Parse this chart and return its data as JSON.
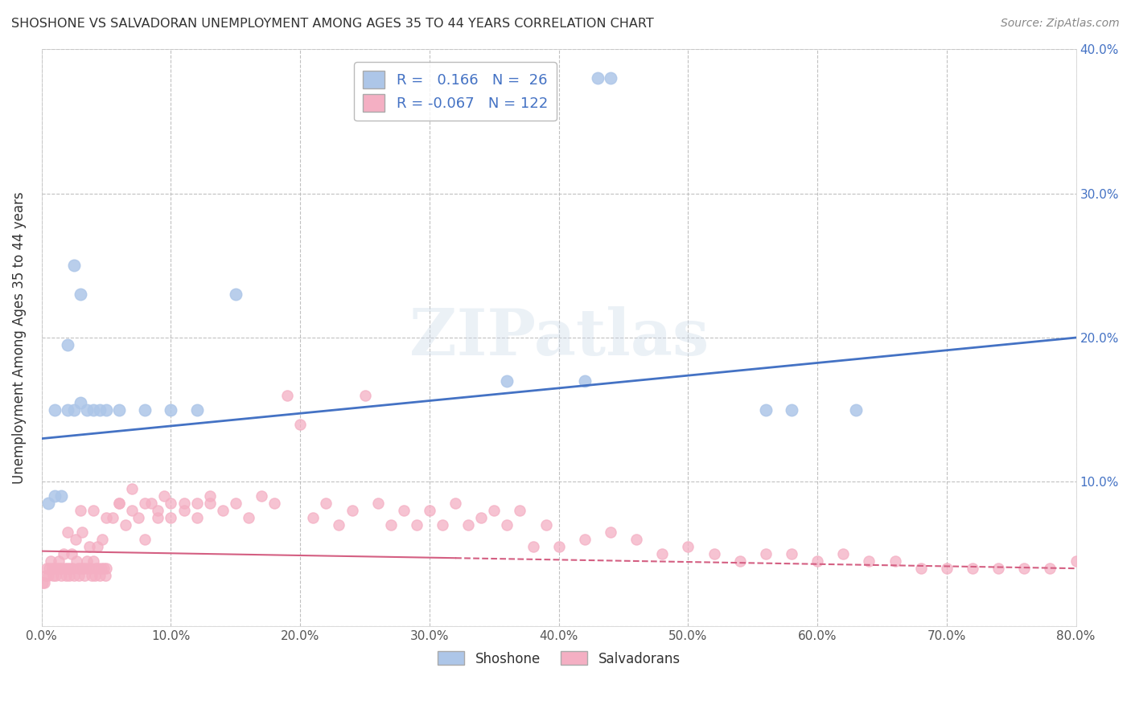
{
  "title": "SHOSHONE VS SALVADORAN UNEMPLOYMENT AMONG AGES 35 TO 44 YEARS CORRELATION CHART",
  "source": "Source: ZipAtlas.com",
  "ylabel": "Unemployment Among Ages 35 to 44 years",
  "xlim": [
    0.0,
    0.8
  ],
  "ylim": [
    0.0,
    0.4
  ],
  "xticks": [
    0.0,
    0.1,
    0.2,
    0.3,
    0.4,
    0.5,
    0.6,
    0.7,
    0.8
  ],
  "yticks": [
    0.0,
    0.1,
    0.2,
    0.3,
    0.4
  ],
  "xtick_labels": [
    "0.0%",
    "10.0%",
    "20.0%",
    "30.0%",
    "40.0%",
    "50.0%",
    "60.0%",
    "70.0%",
    "80.0%"
  ],
  "ytick_labels_right": [
    "",
    "10.0%",
    "20.0%",
    "30.0%",
    "40.0%"
  ],
  "shoshone_color": "#adc6e8",
  "salvadoran_color": "#f4afc3",
  "shoshone_line_color": "#4472c4",
  "salvadoran_line_color": "#d45f82",
  "shoshone_R": 0.166,
  "shoshone_N": 26,
  "salvadoran_R": -0.067,
  "salvadoran_N": 122,
  "legend_R_color": "#4472c4",
  "background_color": "#ffffff",
  "grid_color": "#bbbbbb",
  "shoshone_line_x0": 0.0,
  "shoshone_line_y0": 0.13,
  "shoshone_line_x1": 0.8,
  "shoshone_line_y1": 0.2,
  "salvadoran_line_x0": 0.0,
  "salvadoran_line_y0": 0.052,
  "salvadoran_line_x1": 0.8,
  "salvadoran_line_y1": 0.04,
  "shoshone_x": [
    0.005,
    0.01,
    0.015,
    0.02,
    0.025,
    0.03,
    0.035,
    0.04,
    0.045,
    0.01,
    0.02,
    0.025,
    0.03,
    0.05,
    0.06,
    0.08,
    0.1,
    0.12,
    0.15,
    0.36,
    0.42,
    0.43,
    0.44,
    0.56,
    0.58,
    0.63
  ],
  "shoshone_y": [
    0.085,
    0.09,
    0.09,
    0.195,
    0.15,
    0.155,
    0.15,
    0.15,
    0.15,
    0.15,
    0.15,
    0.25,
    0.23,
    0.15,
    0.15,
    0.15,
    0.15,
    0.15,
    0.23,
    0.17,
    0.17,
    0.38,
    0.38,
    0.15,
    0.15,
    0.15
  ],
  "salvadoran_x": [
    0.001,
    0.002,
    0.003,
    0.004,
    0.005,
    0.006,
    0.007,
    0.008,
    0.009,
    0.01,
    0.011,
    0.012,
    0.013,
    0.014,
    0.015,
    0.016,
    0.017,
    0.018,
    0.019,
    0.02,
    0.021,
    0.022,
    0.023,
    0.024,
    0.025,
    0.026,
    0.027,
    0.028,
    0.029,
    0.03,
    0.031,
    0.032,
    0.033,
    0.034,
    0.035,
    0.036,
    0.037,
    0.038,
    0.039,
    0.04,
    0.041,
    0.042,
    0.043,
    0.044,
    0.045,
    0.046,
    0.047,
    0.048,
    0.049,
    0.05,
    0.055,
    0.06,
    0.065,
    0.07,
    0.075,
    0.08,
    0.085,
    0.09,
    0.095,
    0.1,
    0.11,
    0.12,
    0.13,
    0.14,
    0.15,
    0.16,
    0.17,
    0.18,
    0.19,
    0.2,
    0.21,
    0.22,
    0.23,
    0.24,
    0.25,
    0.26,
    0.27,
    0.28,
    0.29,
    0.3,
    0.31,
    0.32,
    0.33,
    0.34,
    0.35,
    0.36,
    0.37,
    0.38,
    0.39,
    0.4,
    0.42,
    0.44,
    0.46,
    0.48,
    0.5,
    0.52,
    0.54,
    0.56,
    0.58,
    0.6,
    0.62,
    0.64,
    0.66,
    0.68,
    0.7,
    0.72,
    0.74,
    0.76,
    0.78,
    0.8,
    0.02,
    0.03,
    0.04,
    0.05,
    0.06,
    0.07,
    0.08,
    0.09,
    0.1,
    0.11,
    0.12,
    0.13
  ],
  "salvadoran_y": [
    0.03,
    0.03,
    0.035,
    0.04,
    0.035,
    0.04,
    0.045,
    0.04,
    0.035,
    0.04,
    0.035,
    0.04,
    0.045,
    0.04,
    0.035,
    0.04,
    0.05,
    0.04,
    0.035,
    0.04,
    0.035,
    0.04,
    0.05,
    0.04,
    0.035,
    0.06,
    0.045,
    0.04,
    0.035,
    0.04,
    0.065,
    0.04,
    0.035,
    0.04,
    0.045,
    0.04,
    0.055,
    0.04,
    0.035,
    0.045,
    0.035,
    0.04,
    0.055,
    0.04,
    0.035,
    0.04,
    0.06,
    0.04,
    0.035,
    0.04,
    0.075,
    0.085,
    0.07,
    0.095,
    0.075,
    0.06,
    0.085,
    0.075,
    0.09,
    0.075,
    0.085,
    0.075,
    0.09,
    0.08,
    0.085,
    0.075,
    0.09,
    0.085,
    0.16,
    0.14,
    0.075,
    0.085,
    0.07,
    0.08,
    0.16,
    0.085,
    0.07,
    0.08,
    0.07,
    0.08,
    0.07,
    0.085,
    0.07,
    0.075,
    0.08,
    0.07,
    0.08,
    0.055,
    0.07,
    0.055,
    0.06,
    0.065,
    0.06,
    0.05,
    0.055,
    0.05,
    0.045,
    0.05,
    0.05,
    0.045,
    0.05,
    0.045,
    0.045,
    0.04,
    0.04,
    0.04,
    0.04,
    0.04,
    0.04,
    0.045,
    0.065,
    0.08,
    0.08,
    0.075,
    0.085,
    0.08,
    0.085,
    0.08,
    0.085,
    0.08,
    0.085,
    0.085
  ]
}
